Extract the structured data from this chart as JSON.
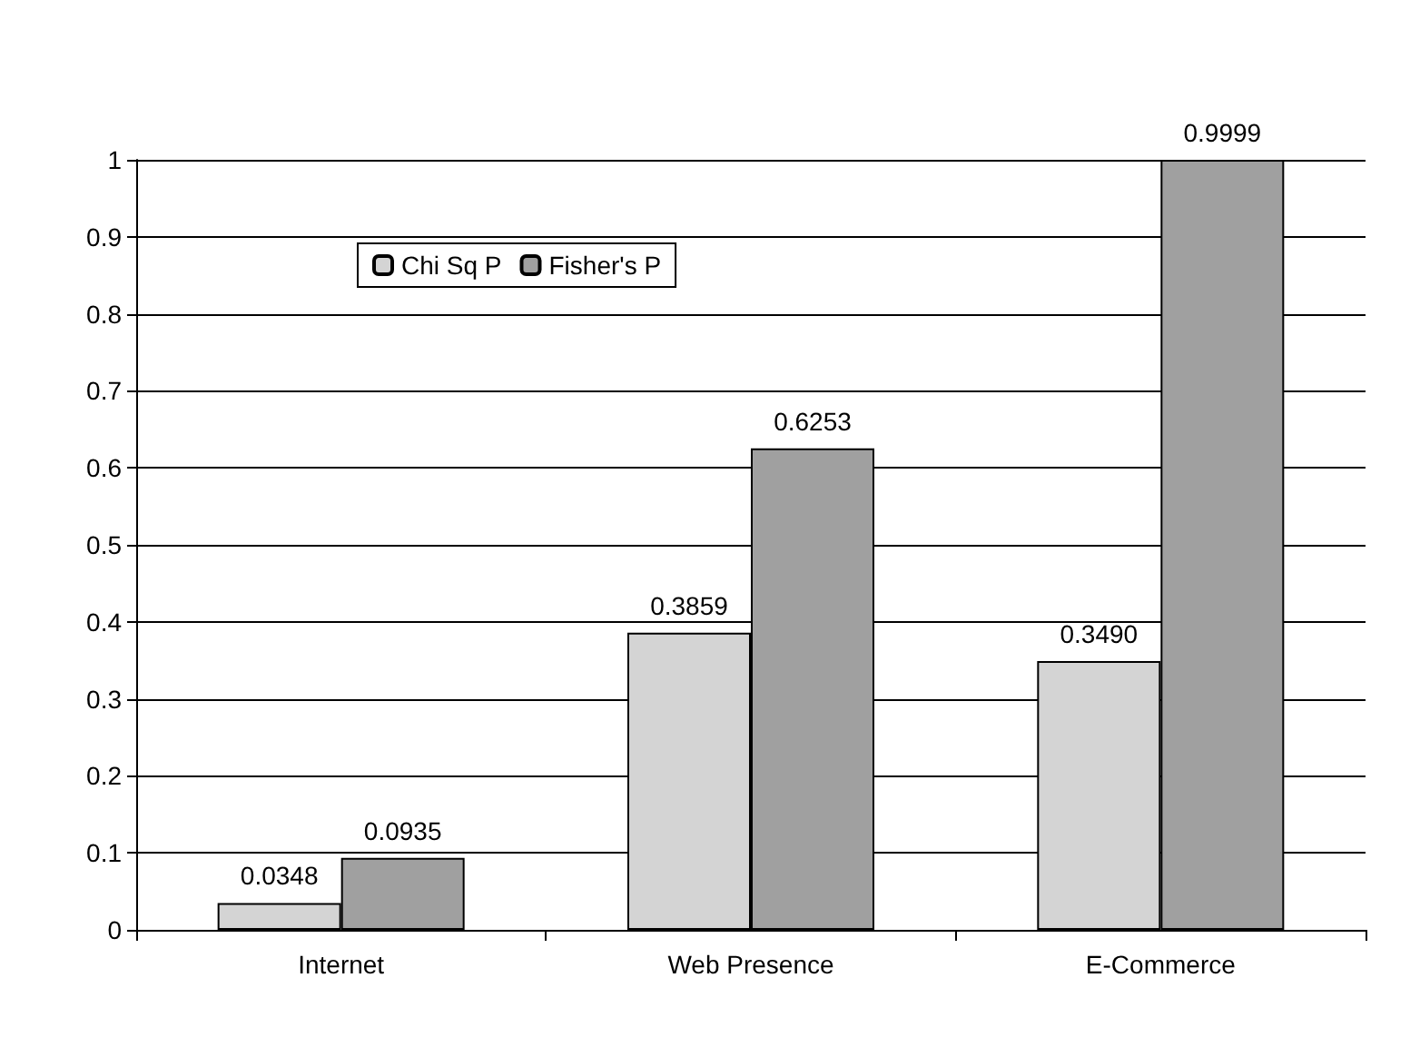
{
  "chart_data": {
    "type": "bar",
    "categories": [
      "Internet",
      "Web Presence",
      "E-Commerce"
    ],
    "series": [
      {
        "name": "Chi Sq P",
        "color": "#d4d4d4",
        "values": [
          0.0348,
          0.3859,
          0.349
        ],
        "value_labels": [
          "0.0348",
          "0.3859",
          "0.3490"
        ]
      },
      {
        "name": "Fisher's P",
        "color": "#a0a0a0",
        "values": [
          0.0935,
          0.6253,
          0.9999
        ],
        "value_labels": [
          "0.0935",
          "0.6253",
          "0.9999"
        ]
      }
    ],
    "ylim": [
      0,
      1
    ],
    "yticks": [
      0,
      0.1,
      0.2,
      0.3,
      0.4,
      0.5,
      0.6,
      0.7,
      0.8,
      0.9,
      1
    ],
    "grid": "y",
    "legend": "top left"
  }
}
